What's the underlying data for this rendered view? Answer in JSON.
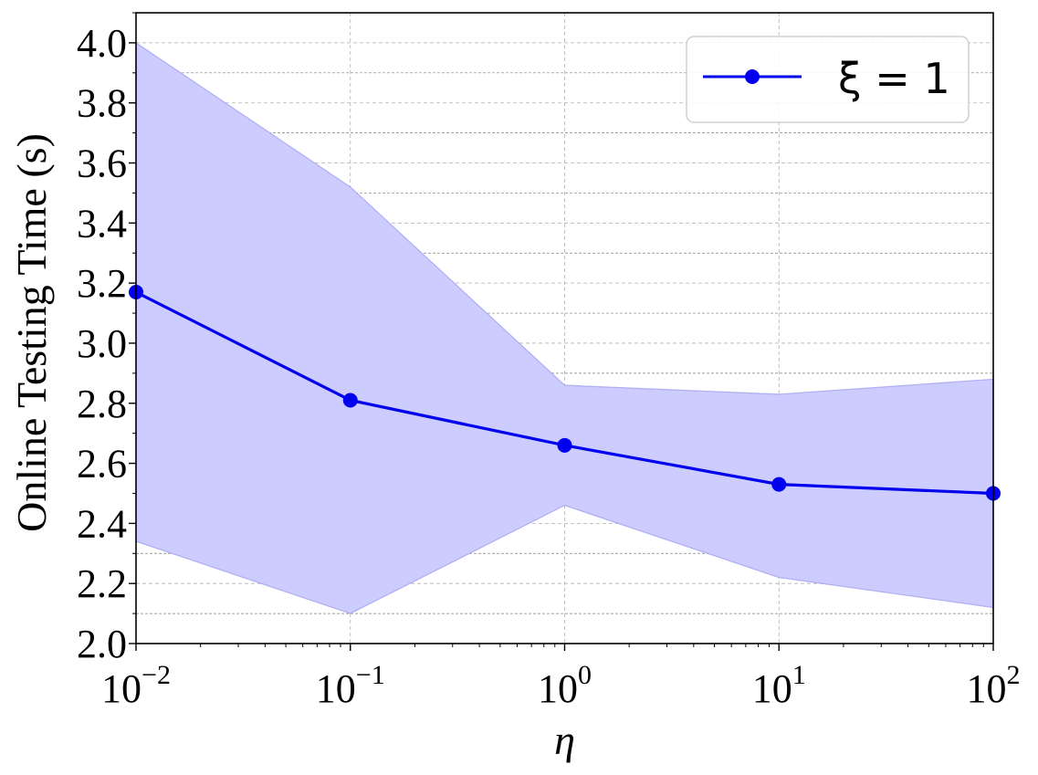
{
  "chart_data": {
    "type": "line",
    "xlabel": "η",
    "ylabel": "Online Testing Time (s)",
    "xscale": "log",
    "xlim": [
      0.01,
      100
    ],
    "ylim": [
      2.0,
      4.1
    ],
    "x": [
      0.01,
      0.1,
      1,
      10,
      100
    ],
    "x_tick_labels": [
      {
        "base": "10",
        "exp": "−2"
      },
      {
        "base": "10",
        "exp": "−1"
      },
      {
        "base": "10",
        "exp": "0"
      },
      {
        "base": "10",
        "exp": "1"
      },
      {
        "base": "10",
        "exp": "2"
      }
    ],
    "y_ticks": [
      2.0,
      2.2,
      2.4,
      2.6,
      2.8,
      3.0,
      3.2,
      3.4,
      3.6,
      3.8,
      4.0
    ],
    "y_tick_labels": [
      "2.0",
      "2.2",
      "2.4",
      "2.6",
      "2.8",
      "3.0",
      "3.2",
      "3.4",
      "3.6",
      "3.8",
      "4.0"
    ],
    "grid": true,
    "legend_position": "top-right",
    "series": [
      {
        "name": "ξ = 1",
        "color": "#0000ee",
        "marker": "circle",
        "values": [
          3.17,
          2.81,
          2.66,
          2.53,
          2.5
        ],
        "band_upper": [
          4.0,
          3.52,
          2.86,
          2.83,
          2.88
        ],
        "band_lower": [
          2.34,
          2.1,
          2.46,
          2.22,
          2.12
        ],
        "band_color": "#ccccff"
      }
    ]
  }
}
